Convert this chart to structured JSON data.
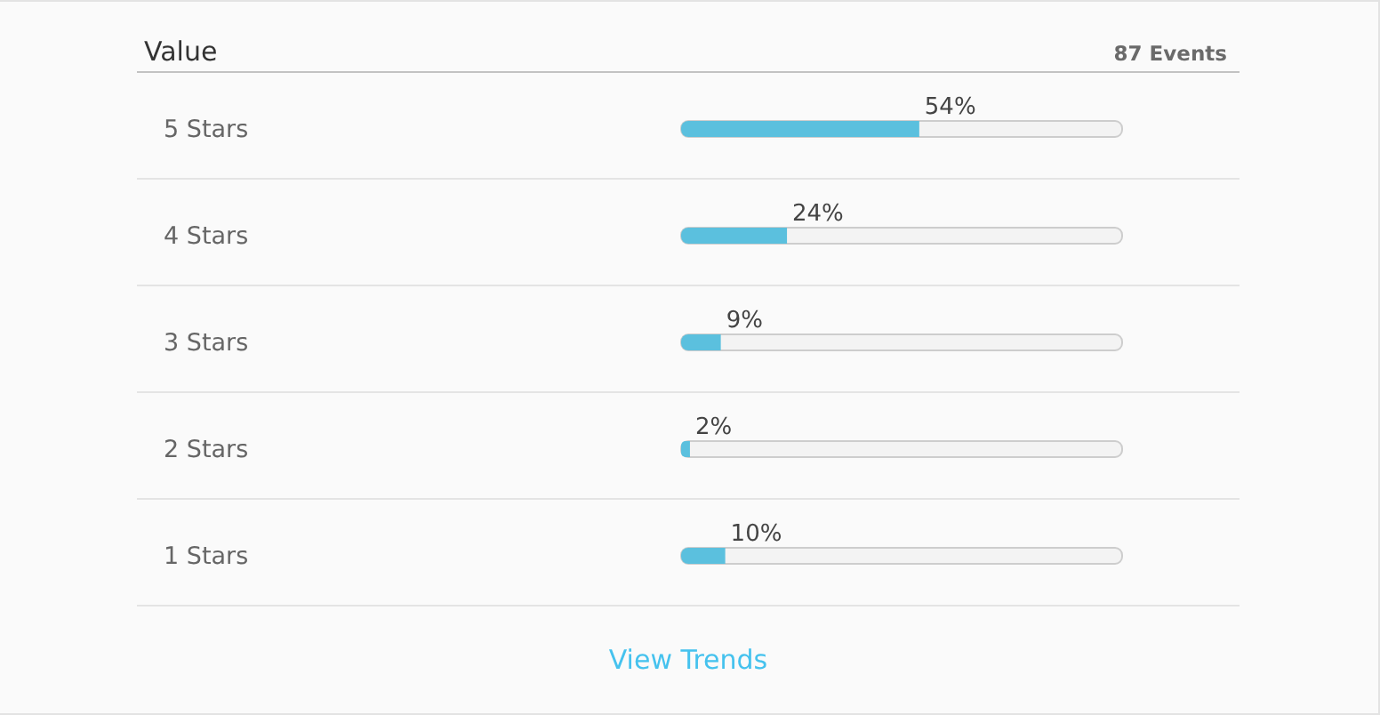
{
  "chart_data": {
    "type": "bar",
    "orientation": "horizontal",
    "title": "Value",
    "annotations": [
      "87 Events",
      "View Trends"
    ],
    "categories": [
      "5 Stars",
      "4 Stars",
      "3 Stars",
      "2 Stars",
      "1 Stars"
    ],
    "values": [
      54,
      24,
      9,
      2,
      10
    ],
    "value_labels": [
      "54%",
      "24%",
      "9%",
      "2%",
      "10%"
    ],
    "color": "#5bc0de",
    "xlim": [
      0,
      100
    ]
  }
}
